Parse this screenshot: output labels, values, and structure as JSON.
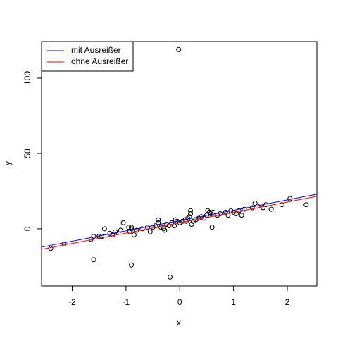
{
  "chart_data": {
    "type": "scatter",
    "x_label": "x",
    "y_label": "y",
    "xlim": [
      -2.57,
      2.55
    ],
    "ylim": [
      -37.9,
      124.3
    ],
    "xticks": [
      -2,
      -1,
      0,
      1,
      2
    ],
    "yticks": [
      0,
      50,
      100
    ],
    "legend": "top-left",
    "points": {
      "color": "#000000",
      "x": [
        -2.4,
        -2.15,
        -1.65,
        -1.6,
        -1.6,
        -1.5,
        -1.45,
        -1.4,
        -1.3,
        -1.25,
        -1.2,
        -1.1,
        -1.05,
        -0.95,
        -0.93,
        -0.9,
        -0.9,
        -0.9,
        -0.85,
        -0.8,
        -0.7,
        -0.6,
        -0.55,
        -0.5,
        -0.45,
        -0.4,
        -0.4,
        -0.35,
        -0.3,
        -0.28,
        -0.25,
        -0.2,
        -0.18,
        -0.15,
        -0.1,
        -0.08,
        -0.05,
        -0.02,
        0,
        0.05,
        0.1,
        0.12,
        0.15,
        0.18,
        0.2,
        0.2,
        0.22,
        0.25,
        0.3,
        0.35,
        0.4,
        0.45,
        0.5,
        0.52,
        0.55,
        0.58,
        0.6,
        0.62,
        0.7,
        0.75,
        0.85,
        0.9,
        0.95,
        1.0,
        1.05,
        1.1,
        1.15,
        1.2,
        1.35,
        1.4,
        1.45,
        1.55,
        1.6,
        1.7,
        1.9,
        2.05,
        2.35
      ],
      "values": [
        -13,
        -10,
        -7,
        -20.5,
        -5,
        -5,
        -5,
        0,
        -3,
        -4,
        -2,
        -1,
        4,
        1,
        -2,
        0,
        1,
        -24,
        -4,
        -1,
        0,
        1,
        -2,
        1,
        2,
        4,
        6,
        1,
        0,
        -1,
        3,
        2,
        -32,
        4,
        2,
        6,
        5,
        119,
        4,
        5,
        6,
        5,
        7,
        8,
        10,
        12,
        3,
        5,
        6,
        7,
        8,
        7,
        9,
        12,
        11,
        10,
        1,
        11,
        9,
        10,
        11,
        9,
        12,
        11,
        10,
        12,
        9,
        13,
        14,
        17,
        15,
        14,
        16,
        13,
        16,
        20,
        16
      ]
    },
    "series": [
      {
        "name": "mit Ausreißer",
        "color": "#0000ff",
        "x": [
          -2.57,
          2.55
        ],
        "values": [
          -12.1,
          22.9
        ]
      },
      {
        "name": "ohne Ausreißer",
        "color": "#ff0000",
        "x": [
          -2.57,
          2.55
        ],
        "values": [
          -13.6,
          21.5
        ]
      }
    ]
  }
}
